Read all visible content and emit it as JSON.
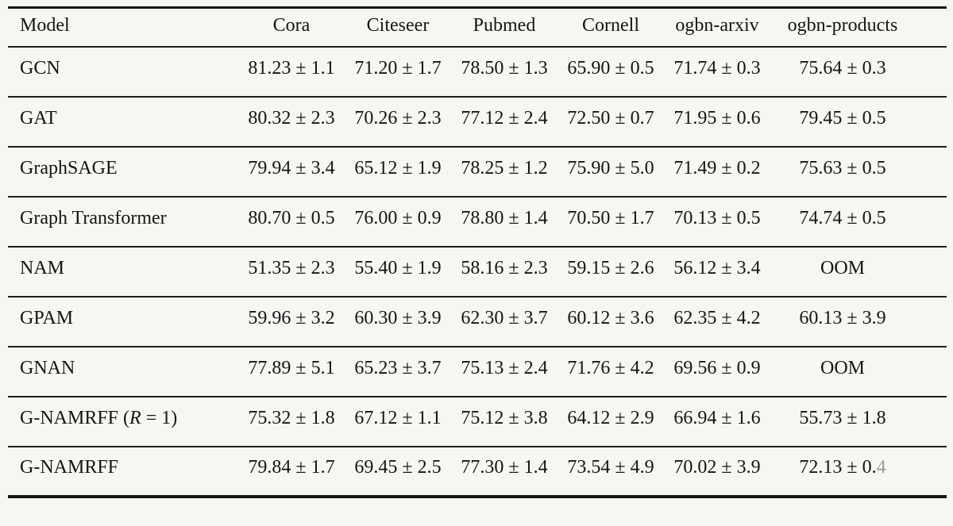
{
  "page": {
    "background_color": "#f8f6f1",
    "text_color": "#151515",
    "rule_color": "#161616"
  },
  "table": {
    "columns": [
      {
        "label": "Model",
        "align": "left"
      },
      {
        "label": "Cora"
      },
      {
        "label": "Citeseer"
      },
      {
        "label": "Pubmed"
      },
      {
        "label": "Cornell"
      },
      {
        "label": "ogbn-arxiv"
      },
      {
        "label": "ogbn-products"
      }
    ],
    "rows": [
      {
        "model": "GCN",
        "values": [
          "81.23 ± 1.1",
          "71.20 ± 1.7",
          "78.50 ± 1.3",
          "65.90 ± 0.5",
          "71.74 ± 0.3",
          "75.64 ± 0.3"
        ]
      },
      {
        "model": "GAT",
        "values": [
          "80.32 ± 2.3",
          "70.26 ± 2.3",
          "77.12 ± 2.4",
          "72.50 ± 0.7",
          "71.95 ± 0.6",
          "79.45 ± 0.5"
        ]
      },
      {
        "model": "GraphSAGE",
        "values": [
          "79.94 ± 3.4",
          "65.12 ± 1.9",
          "78.25 ± 1.2",
          "75.90 ± 5.0",
          "71.49 ± 0.2",
          "75.63 ± 0.5"
        ]
      },
      {
        "model": "Graph Transformer",
        "values": [
          "80.70 ± 0.5",
          "76.00 ± 0.9",
          "78.80 ± 1.4",
          "70.50 ± 1.7",
          "70.13 ± 0.5",
          "74.74 ± 0.5"
        ]
      },
      {
        "model": "NAM",
        "values": [
          "51.35 ± 2.3",
          "55.40 ± 1.9",
          "58.16 ± 2.3",
          "59.15 ± 2.6",
          "56.12 ± 3.4",
          "OOM"
        ]
      },
      {
        "model": "GPAM",
        "values": [
          "59.96 ± 3.2",
          "60.30 ± 3.9",
          "62.30 ± 3.7",
          "60.12 ± 3.6",
          "62.35 ± 4.2",
          "60.13 ± 3.9"
        ]
      },
      {
        "model": "GNAN",
        "values": [
          "77.89 ± 5.1",
          "65.23 ± 3.7",
          "75.13 ± 2.4",
          "71.76 ± 4.2",
          "69.56 ± 0.9",
          "OOM"
        ]
      },
      {
        "model": "G-NAMRFF (R = 1)",
        "model_parts": [
          {
            "text": "G-NAMRFF ("
          },
          {
            "text": "R",
            "italic": true
          },
          {
            "text": " = 1)"
          }
        ],
        "values": [
          "75.32 ± 1.8",
          "67.12 ± 1.1",
          "75.12 ± 3.8",
          "64.12 ± 2.9",
          "66.94 ± 1.6",
          "55.73 ± 1.8"
        ]
      },
      {
        "model": "G-NAMRFF",
        "values": [
          "79.84 ± 1.7",
          "69.45 ± 2.5",
          "77.30 ± 1.4",
          "73.54 ± 4.9",
          "70.02 ± 3.9",
          [
            "72.13 ± 0.",
            "4"
          ]
        ]
      }
    ]
  }
}
